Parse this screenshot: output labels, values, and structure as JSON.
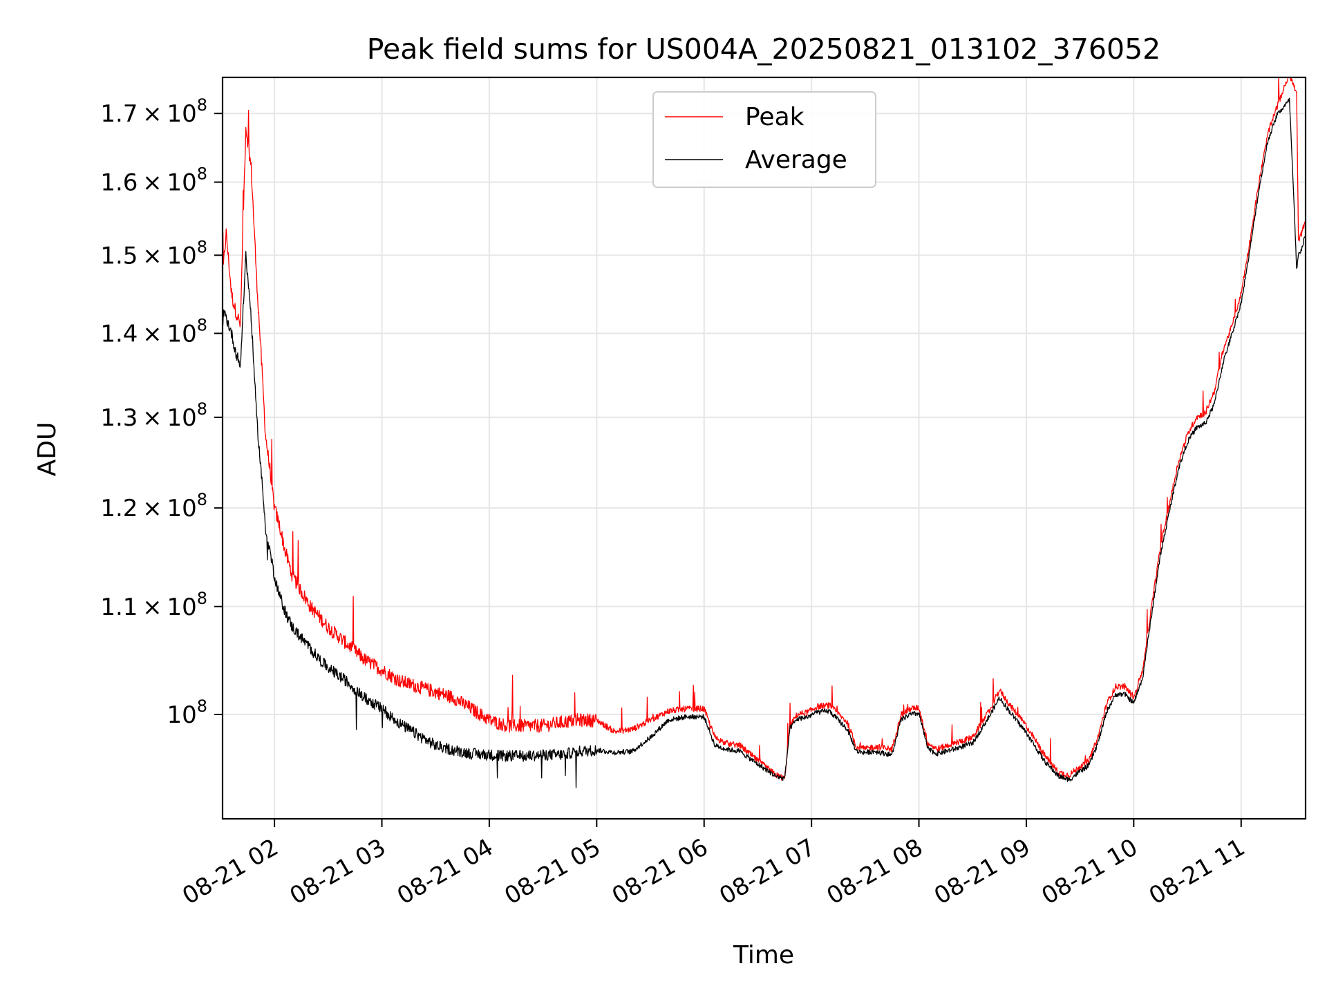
{
  "chart_data": {
    "type": "line",
    "title": "Peak field sums for US004A_20250821_013102_376052",
    "xlabel": "Time",
    "ylabel": "ADU",
    "x_unit": "time (2025-08-21)",
    "xlim": [
      "2025-08-21 01:31",
      "2025-08-21 11:36"
    ],
    "ylim": [
      91200000,
      175500000
    ],
    "y_scale": "log",
    "grid": true,
    "legend_position": "upper center",
    "x_ticks": [
      {
        "value": "02:00",
        "label": "08-21 02"
      },
      {
        "value": "03:00",
        "label": "08-21 03"
      },
      {
        "value": "04:00",
        "label": "08-21 04"
      },
      {
        "value": "05:00",
        "label": "08-21 05"
      },
      {
        "value": "06:00",
        "label": "08-21 06"
      },
      {
        "value": "07:00",
        "label": "08-21 07"
      },
      {
        "value": "08:00",
        "label": "08-21 08"
      },
      {
        "value": "09:00",
        "label": "08-21 09"
      },
      {
        "value": "10:00",
        "label": "08-21 10"
      },
      {
        "value": "11:00",
        "label": "08-21 11"
      }
    ],
    "y_ticks": [
      {
        "value": 100000000,
        "mantissa": "",
        "exp": "8"
      },
      {
        "value": 110000000,
        "mantissa": "1.1",
        "exp": "8"
      },
      {
        "value": 120000000,
        "mantissa": "1.2",
        "exp": "8"
      },
      {
        "value": 130000000,
        "mantissa": "1.3",
        "exp": "8"
      },
      {
        "value": 140000000,
        "mantissa": "1.4",
        "exp": "8"
      },
      {
        "value": 150000000,
        "mantissa": "1.5",
        "exp": "8"
      },
      {
        "value": 160000000,
        "mantissa": "1.6",
        "exp": "8"
      },
      {
        "value": 170000000,
        "mantissa": "1.7",
        "exp": "8"
      }
    ],
    "series": [
      {
        "name": "Peak",
        "color": "#ff0000",
        "x": [
          "01:31",
          "01:33",
          "01:36",
          "01:38",
          "01:41",
          "01:44",
          "01:47",
          "01:50",
          "01:55",
          "02:00",
          "02:03",
          "02:06",
          "02:10",
          "02:15",
          "02:20",
          "02:25",
          "02:30",
          "02:40",
          "02:50",
          "03:00",
          "03:10",
          "03:20",
          "03:30",
          "03:40",
          "03:50",
          "04:00",
          "04:10",
          "04:20",
          "04:30",
          "04:40",
          "04:50",
          "05:00",
          "05:10",
          "05:20",
          "05:30",
          "05:40",
          "05:50",
          "06:00",
          "06:06",
          "06:12",
          "06:20",
          "06:30",
          "06:40",
          "06:45",
          "06:48",
          "06:52",
          "06:58",
          "07:03",
          "07:10",
          "07:20",
          "07:25",
          "07:30",
          "07:35",
          "07:45",
          "07:50",
          "07:55",
          "08:00",
          "08:05",
          "08:10",
          "08:20",
          "08:30",
          "08:40",
          "08:45",
          "08:50",
          "09:00",
          "09:10",
          "09:18",
          "09:24",
          "09:30",
          "09:35",
          "09:40",
          "09:45",
          "09:50",
          "09:55",
          "10:00",
          "10:05",
          "10:10",
          "10:15",
          "10:20",
          "10:25",
          "10:30",
          "10:35",
          "10:40",
          "10:45",
          "10:50",
          "10:55",
          "11:00",
          "11:05",
          "11:10",
          "11:15",
          "11:20",
          "11:27",
          "11:31",
          "11:32",
          "11:34",
          "11:36"
        ],
        "values": [
          147000000,
          153000000,
          145000000,
          143000000,
          141000000,
          168000000,
          162000000,
          147000000,
          128000000,
          120000000,
          118000000,
          115500000,
          113000000,
          111500000,
          110000000,
          109000000,
          108000000,
          106500000,
          105000000,
          104000000,
          103000000,
          102500000,
          102000000,
          101500000,
          100500000,
          99500000,
          99000000,
          99000000,
          99000000,
          99300000,
          99500000,
          99500000,
          98500000,
          98700000,
          99500000,
          100300000,
          100500000,
          100500000,
          98000000,
          97500000,
          97300000,
          96000000,
          94800000,
          94500000,
          99000000,
          100000000,
          100200000,
          100700000,
          100800000,
          99300000,
          97200000,
          97000000,
          97200000,
          97000000,
          100000000,
          100500000,
          100600000,
          97500000,
          97000000,
          97500000,
          98000000,
          100500000,
          102200000,
          101000000,
          99000000,
          96500000,
          95000000,
          94800000,
          95500000,
          96000000,
          98000000,
          101000000,
          102500000,
          102500000,
          101500000,
          104000000,
          110000000,
          116000000,
          120500000,
          125000000,
          128000000,
          130000000,
          130500000,
          133000000,
          138000000,
          141000000,
          145000000,
          152000000,
          160000000,
          167000000,
          171000000,
          176000000,
          173000000,
          152000000,
          153000000,
          155000000
        ]
      },
      {
        "name": "Average",
        "color": "#000000",
        "x": [
          "01:31",
          "01:33",
          "01:36",
          "01:38",
          "01:41",
          "01:44",
          "01:47",
          "01:50",
          "01:55",
          "02:00",
          "02:03",
          "02:06",
          "02:10",
          "02:15",
          "02:20",
          "02:25",
          "02:30",
          "02:40",
          "02:50",
          "03:00",
          "03:10",
          "03:20",
          "03:30",
          "03:40",
          "03:50",
          "04:00",
          "04:10",
          "04:20",
          "04:30",
          "04:40",
          "04:50",
          "05:00",
          "05:10",
          "05:20",
          "05:30",
          "05:40",
          "05:50",
          "06:00",
          "06:06",
          "06:12",
          "06:20",
          "06:30",
          "06:40",
          "06:45",
          "06:48",
          "06:52",
          "06:58",
          "07:03",
          "07:10",
          "07:20",
          "07:25",
          "07:30",
          "07:35",
          "07:45",
          "07:50",
          "07:55",
          "08:00",
          "08:05",
          "08:10",
          "08:20",
          "08:30",
          "08:40",
          "08:45",
          "08:50",
          "09:00",
          "09:10",
          "09:18",
          "09:24",
          "09:30",
          "09:35",
          "09:40",
          "09:45",
          "09:50",
          "09:55",
          "10:00",
          "10:05",
          "10:10",
          "10:15",
          "10:20",
          "10:25",
          "10:30",
          "10:35",
          "10:40",
          "10:45",
          "10:50",
          "10:55",
          "11:00",
          "11:05",
          "11:10",
          "11:15",
          "11:20",
          "11:27",
          "11:31",
          "11:32",
          "11:34",
          "11:36"
        ],
        "values": [
          143000000,
          142000000,
          140000000,
          138000000,
          136000000,
          150000000,
          142000000,
          130000000,
          118000000,
          113000000,
          111000000,
          109500000,
          108000000,
          107000000,
          106000000,
          105000000,
          104200000,
          103000000,
          101500000,
          100500000,
          99200000,
          98200000,
          97300000,
          96900000,
          96600000,
          96500000,
          96400000,
          96400000,
          96500000,
          96500000,
          96800000,
          96900000,
          96700000,
          96800000,
          98000000,
          99500000,
          99800000,
          99800000,
          97300000,
          97000000,
          96800000,
          95700000,
          94700000,
          94500000,
          98800000,
          99600000,
          99800000,
          100200000,
          100300000,
          98700000,
          96800000,
          96700000,
          96800000,
          96500000,
          99500000,
          100000000,
          100100000,
          97000000,
          96600000,
          97000000,
          97500000,
          100000000,
          101500000,
          100400000,
          98400000,
          96000000,
          94700000,
          94400000,
          95100000,
          95600000,
          97500000,
          100300000,
          101800000,
          101800000,
          101000000,
          103300000,
          109200000,
          115200000,
          119700000,
          124200000,
          127200000,
          128800000,
          129300000,
          131500000,
          136500000,
          140000000,
          143800000,
          150800000,
          159000000,
          166000000,
          169800000,
          172000000,
          148000000,
          150000000,
          151000000,
          153000000
        ]
      }
    ]
  }
}
